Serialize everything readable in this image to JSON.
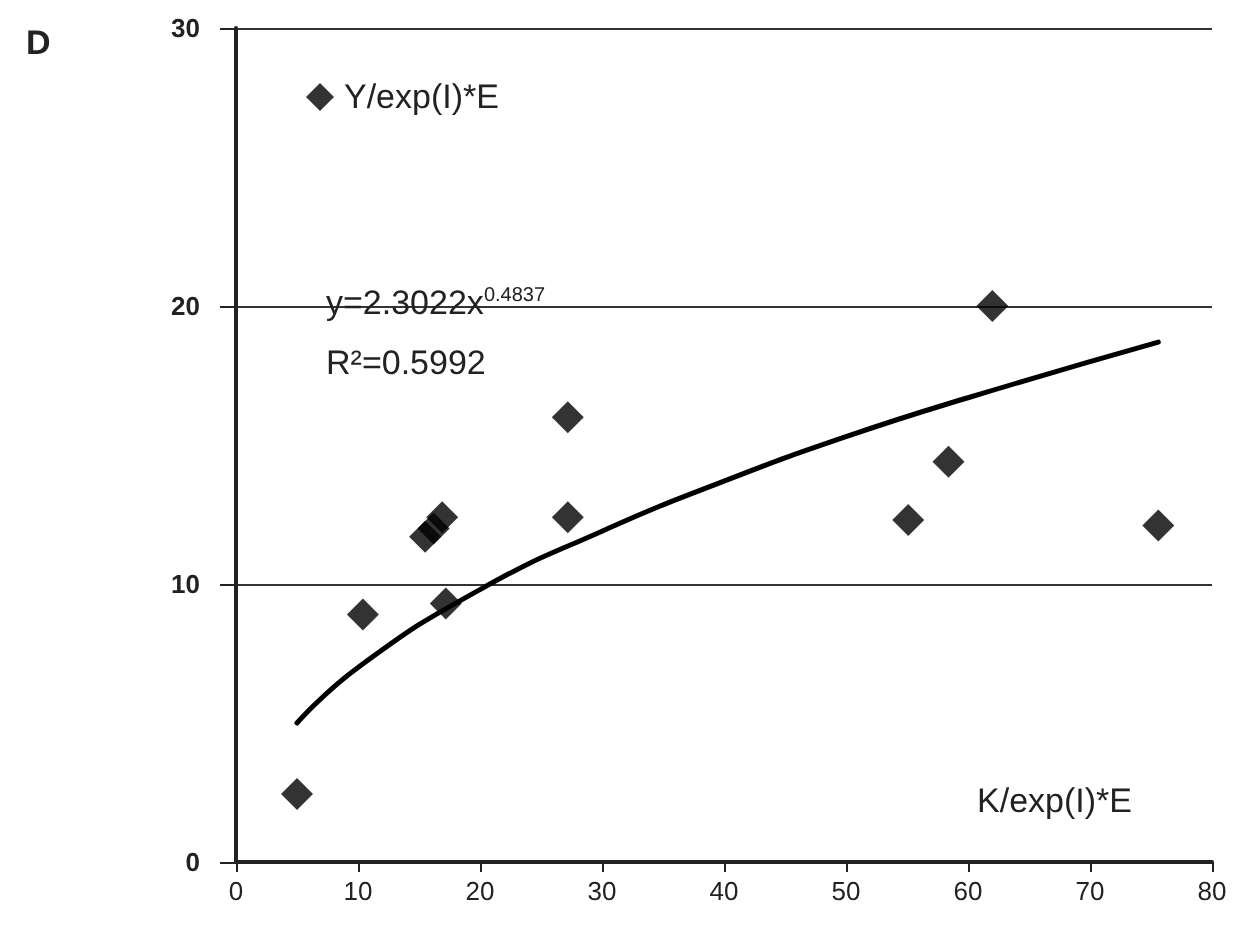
{
  "chart_data": {
    "type": "scatter",
    "title": "D",
    "xlabel": "K/exp(I)*E",
    "annotations": [
      "y=2.3022x$^{0.4837}$",
      "R²=0.5992"
    ],
    "series": [
      {
        "name": "Y/exp(I)*E",
        "color": "#000000",
        "x": [
          5.0,
          10.4,
          15.5,
          16.2,
          16.9,
          17.2,
          27.2,
          27.2,
          55.1,
          58.4,
          62.0,
          75.6
        ],
        "values": [
          2.45,
          8.9,
          11.7,
          12.0,
          12.4,
          9.3,
          16.0,
          12.4,
          12.3,
          14.4,
          20.0,
          12.1
        ]
      },
      {
        "type": "line",
        "color": "#000000",
        "marker": "none",
        "x": [
          5,
          10,
          20,
          30,
          40,
          50,
          60,
          75.6
        ],
        "values": [
          5.0,
          7.0,
          9.8,
          11.9,
          13.7,
          15.3,
          16.7,
          18.7
        ]
      }
    ],
    "xlim": [
      0,
      80
    ],
    "xticks": [
      0,
      10,
      20,
      30,
      40,
      50,
      60,
      70,
      80
    ],
    "ylim": [
      0,
      30
    ],
    "yticks": [
      0,
      10,
      20,
      30
    ],
    "grid": "y",
    "legend": "top left",
    "marker": "diamond"
  }
}
